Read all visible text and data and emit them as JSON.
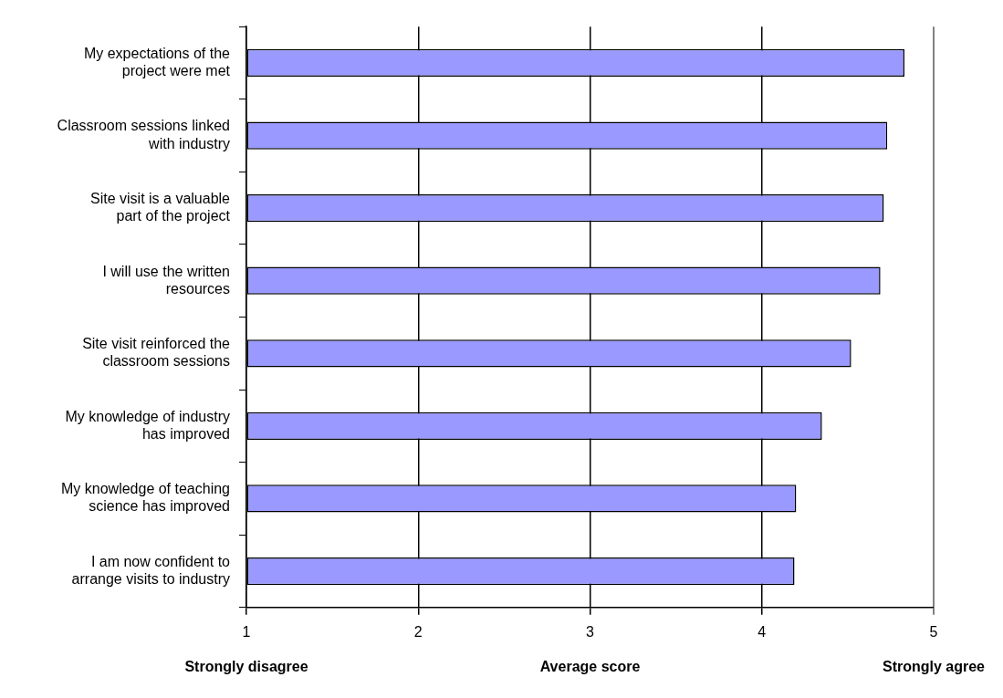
{
  "chart_data": {
    "type": "bar",
    "orientation": "horizontal",
    "xlabel": "Average score",
    "categories": [
      "My expectations of the project were met",
      "Classroom sessions linked with industry",
      "Site visit is a valuable part of the project",
      "I will use the written resources",
      "Site visit reinforced the classroom sessions",
      "My knowledge of industry has improved",
      "My knowledge of teaching science has improved",
      "I am now confident to arrange visits to industry"
    ],
    "values": [
      4.83,
      4.73,
      4.71,
      4.69,
      4.52,
      4.35,
      4.2,
      4.19
    ],
    "color": "#9999ff",
    "xlim": [
      1,
      5
    ],
    "xticks": [
      1,
      2,
      3,
      4,
      5
    ],
    "grid": "x",
    "legend": false,
    "annotations": [
      "Strongly disagree",
      "Strongly agree"
    ]
  }
}
